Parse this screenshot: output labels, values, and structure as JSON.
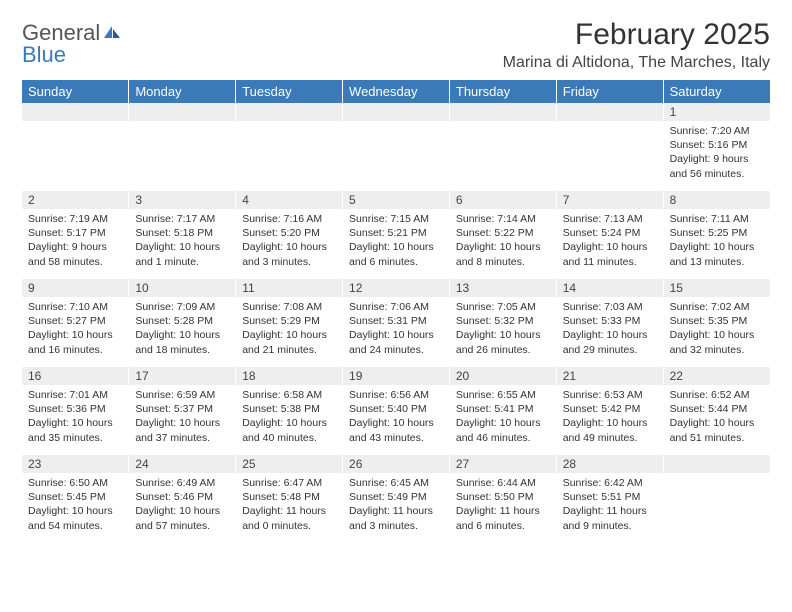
{
  "logo": {
    "text1": "General",
    "text2": "Blue"
  },
  "title": "February 2025",
  "location": "Marina di Altidona, The Marches, Italy",
  "colors": {
    "header_bg": "#3a7ab8",
    "header_text": "#ffffff",
    "daynum_bg": "#eeeeee",
    "text": "#333333"
  },
  "dayHeaders": [
    "Sunday",
    "Monday",
    "Tuesday",
    "Wednesday",
    "Thursday",
    "Friday",
    "Saturday"
  ],
  "weeks": [
    {
      "nums": [
        "",
        "",
        "",
        "",
        "",
        "",
        "1"
      ],
      "cells": [
        null,
        null,
        null,
        null,
        null,
        null,
        {
          "sunrise": "Sunrise: 7:20 AM",
          "sunset": "Sunset: 5:16 PM",
          "daylight": "Daylight: 9 hours and 56 minutes."
        }
      ]
    },
    {
      "nums": [
        "2",
        "3",
        "4",
        "5",
        "6",
        "7",
        "8"
      ],
      "cells": [
        {
          "sunrise": "Sunrise: 7:19 AM",
          "sunset": "Sunset: 5:17 PM",
          "daylight": "Daylight: 9 hours and 58 minutes."
        },
        {
          "sunrise": "Sunrise: 7:17 AM",
          "sunset": "Sunset: 5:18 PM",
          "daylight": "Daylight: 10 hours and 1 minute."
        },
        {
          "sunrise": "Sunrise: 7:16 AM",
          "sunset": "Sunset: 5:20 PM",
          "daylight": "Daylight: 10 hours and 3 minutes."
        },
        {
          "sunrise": "Sunrise: 7:15 AM",
          "sunset": "Sunset: 5:21 PM",
          "daylight": "Daylight: 10 hours and 6 minutes."
        },
        {
          "sunrise": "Sunrise: 7:14 AM",
          "sunset": "Sunset: 5:22 PM",
          "daylight": "Daylight: 10 hours and 8 minutes."
        },
        {
          "sunrise": "Sunrise: 7:13 AM",
          "sunset": "Sunset: 5:24 PM",
          "daylight": "Daylight: 10 hours and 11 minutes."
        },
        {
          "sunrise": "Sunrise: 7:11 AM",
          "sunset": "Sunset: 5:25 PM",
          "daylight": "Daylight: 10 hours and 13 minutes."
        }
      ]
    },
    {
      "nums": [
        "9",
        "10",
        "11",
        "12",
        "13",
        "14",
        "15"
      ],
      "cells": [
        {
          "sunrise": "Sunrise: 7:10 AM",
          "sunset": "Sunset: 5:27 PM",
          "daylight": "Daylight: 10 hours and 16 minutes."
        },
        {
          "sunrise": "Sunrise: 7:09 AM",
          "sunset": "Sunset: 5:28 PM",
          "daylight": "Daylight: 10 hours and 18 minutes."
        },
        {
          "sunrise": "Sunrise: 7:08 AM",
          "sunset": "Sunset: 5:29 PM",
          "daylight": "Daylight: 10 hours and 21 minutes."
        },
        {
          "sunrise": "Sunrise: 7:06 AM",
          "sunset": "Sunset: 5:31 PM",
          "daylight": "Daylight: 10 hours and 24 minutes."
        },
        {
          "sunrise": "Sunrise: 7:05 AM",
          "sunset": "Sunset: 5:32 PM",
          "daylight": "Daylight: 10 hours and 26 minutes."
        },
        {
          "sunrise": "Sunrise: 7:03 AM",
          "sunset": "Sunset: 5:33 PM",
          "daylight": "Daylight: 10 hours and 29 minutes."
        },
        {
          "sunrise": "Sunrise: 7:02 AM",
          "sunset": "Sunset: 5:35 PM",
          "daylight": "Daylight: 10 hours and 32 minutes."
        }
      ]
    },
    {
      "nums": [
        "16",
        "17",
        "18",
        "19",
        "20",
        "21",
        "22"
      ],
      "cells": [
        {
          "sunrise": "Sunrise: 7:01 AM",
          "sunset": "Sunset: 5:36 PM",
          "daylight": "Daylight: 10 hours and 35 minutes."
        },
        {
          "sunrise": "Sunrise: 6:59 AM",
          "sunset": "Sunset: 5:37 PM",
          "daylight": "Daylight: 10 hours and 37 minutes."
        },
        {
          "sunrise": "Sunrise: 6:58 AM",
          "sunset": "Sunset: 5:38 PM",
          "daylight": "Daylight: 10 hours and 40 minutes."
        },
        {
          "sunrise": "Sunrise: 6:56 AM",
          "sunset": "Sunset: 5:40 PM",
          "daylight": "Daylight: 10 hours and 43 minutes."
        },
        {
          "sunrise": "Sunrise: 6:55 AM",
          "sunset": "Sunset: 5:41 PM",
          "daylight": "Daylight: 10 hours and 46 minutes."
        },
        {
          "sunrise": "Sunrise: 6:53 AM",
          "sunset": "Sunset: 5:42 PM",
          "daylight": "Daylight: 10 hours and 49 minutes."
        },
        {
          "sunrise": "Sunrise: 6:52 AM",
          "sunset": "Sunset: 5:44 PM",
          "daylight": "Daylight: 10 hours and 51 minutes."
        }
      ]
    },
    {
      "nums": [
        "23",
        "24",
        "25",
        "26",
        "27",
        "28",
        ""
      ],
      "cells": [
        {
          "sunrise": "Sunrise: 6:50 AM",
          "sunset": "Sunset: 5:45 PM",
          "daylight": "Daylight: 10 hours and 54 minutes."
        },
        {
          "sunrise": "Sunrise: 6:49 AM",
          "sunset": "Sunset: 5:46 PM",
          "daylight": "Daylight: 10 hours and 57 minutes."
        },
        {
          "sunrise": "Sunrise: 6:47 AM",
          "sunset": "Sunset: 5:48 PM",
          "daylight": "Daylight: 11 hours and 0 minutes."
        },
        {
          "sunrise": "Sunrise: 6:45 AM",
          "sunset": "Sunset: 5:49 PM",
          "daylight": "Daylight: 11 hours and 3 minutes."
        },
        {
          "sunrise": "Sunrise: 6:44 AM",
          "sunset": "Sunset: 5:50 PM",
          "daylight": "Daylight: 11 hours and 6 minutes."
        },
        {
          "sunrise": "Sunrise: 6:42 AM",
          "sunset": "Sunset: 5:51 PM",
          "daylight": "Daylight: 11 hours and 9 minutes."
        },
        null
      ]
    }
  ]
}
